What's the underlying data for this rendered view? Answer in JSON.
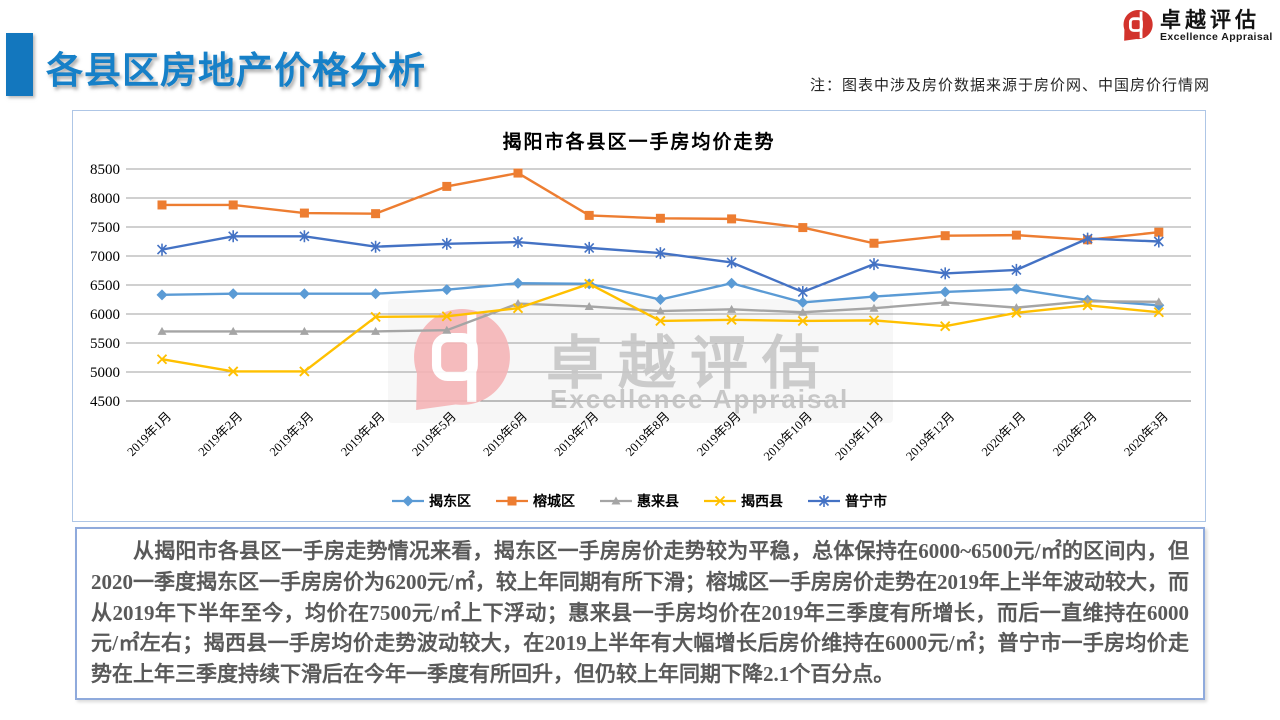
{
  "header": {
    "title": "各县区房地产价格分析",
    "note": "注：图表中涉及房价数据来源于房价网、中国房价行情网",
    "logo": {
      "cn": "卓越评估",
      "en": "Excellence Appraisal"
    }
  },
  "watermark": {
    "cn": "卓越评估",
    "en": "Excellence Appraisal"
  },
  "colors": {
    "title_blue": "#1680C8",
    "accent_square_blue": "#1377BE",
    "logo_red": "#D2332C",
    "watermark_pink": "#F5B4B6",
    "watermark_gray": "#C6C6C6",
    "grid_gray": "#A0A0A0",
    "box_border_blue": "#8FAADC",
    "analysis_text_gray": "#595959"
  },
  "chart_data": {
    "type": "line",
    "title": "揭阳市各县区一手房均价走势",
    "categories": [
      "2019年1月",
      "2019年2月",
      "2019年3月",
      "2019年4月",
      "2019年5月",
      "2019年6月",
      "2019年7月",
      "2019年8月",
      "2019年9月",
      "2019年10月",
      "2019年11月",
      "2019年12月",
      "2020年1月",
      "2020年2月",
      "2020年3月"
    ],
    "series": [
      {
        "name": "揭东区",
        "color": "#5B9BD5",
        "marker": "diamond",
        "values": [
          6330,
          6350,
          6350,
          6350,
          6420,
          6530,
          6520,
          6250,
          6530,
          6200,
          6300,
          6380,
          6430,
          6240,
          6150
        ]
      },
      {
        "name": "榕城区",
        "color": "#ED7D31",
        "marker": "square",
        "values": [
          7880,
          7880,
          7740,
          7730,
          8200,
          8430,
          7700,
          7650,
          7640,
          7490,
          7220,
          7350,
          7360,
          7280,
          7410
        ]
      },
      {
        "name": "惠来县",
        "color": "#A5A5A5",
        "marker": "triangle",
        "values": [
          5700,
          5700,
          5700,
          5700,
          5720,
          6180,
          6130,
          6050,
          6080,
          6030,
          6100,
          6200,
          6110,
          6220,
          6210
        ]
      },
      {
        "name": "揭西县",
        "color": "#FFC000",
        "marker": "x",
        "values": [
          5220,
          5010,
          5010,
          5950,
          5960,
          6100,
          6520,
          5880,
          5900,
          5880,
          5890,
          5790,
          6020,
          6150,
          6030
        ]
      },
      {
        "name": "普宁市",
        "color": "#4472C4",
        "marker": "asterisk",
        "values": [
          7110,
          7340,
          7340,
          7160,
          7210,
          7240,
          7140,
          7050,
          6890,
          6380,
          6860,
          6700,
          6760,
          7300,
          7250
        ]
      }
    ],
    "ylim": [
      4500,
      8500
    ],
    "ytick_step": 500,
    "grid": true,
    "legend_position": "bottom",
    "unit": "元/㎡"
  },
  "analysis": {
    "text": "从揭阳市各县区一手房走势情况来看，揭东区一手房房价走势较为平稳，总体保持在6000~6500元/㎡的区间内，但2020一季度揭东区一手房房价为6200元/㎡，较上年同期有所下滑；榕城区一手房房价走势在2019年上半年波动较大，而从2019年下半年至今，均价在7500元/㎡上下浮动；惠来县一手房均价在2019年三季度有所增长，而后一直维持在6000元/㎡左右；揭西县一手房均价走势波动较大，在2019上半年有大幅增长后房价维持在6000元/㎡；普宁市一手房均价走势在上年三季度持续下滑后在今年一季度有所回升，但仍较上年同期下降2.1个百分点。"
  }
}
